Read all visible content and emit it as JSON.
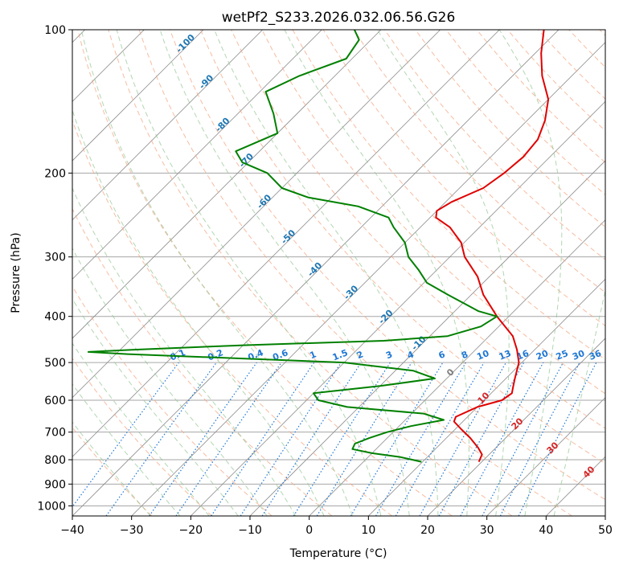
{
  "chart_data": {
    "type": "line",
    "title": "wetPf2_S233.2026.032.06.56.G26",
    "xlabel": "Temperature (°C)",
    "ylabel": "Pressure (hPa)",
    "xlim": [
      -40,
      50
    ],
    "ylim": [
      1050,
      100
    ],
    "y_scale": "log",
    "grid": true,
    "x_ticks": [
      "−40",
      "−30",
      "−20",
      "−10",
      "0",
      "10",
      "20",
      "30",
      "40",
      "50"
    ],
    "x_tick_values": [
      -40,
      -30,
      -20,
      -10,
      0,
      10,
      20,
      30,
      40,
      50
    ],
    "y_ticks": [
      "100",
      "200",
      "300",
      "400",
      "500",
      "600",
      "700",
      "800",
      "900",
      "1000"
    ],
    "y_tick_values": [
      100,
      200,
      300,
      400,
      500,
      600,
      700,
      800,
      900,
      1000
    ],
    "series": [
      {
        "color": "#e00000",
        "role": "temperature",
        "p": [
          808,
          780,
          755,
          720,
          690,
          665,
          650,
          620,
          600,
          580,
          560,
          540,
          500,
          470,
          440,
          400,
          360,
          330,
          300,
          280,
          260,
          248,
          240,
          230,
          215,
          200,
          185,
          170,
          155,
          140,
          125,
          112,
          100
        ],
        "t": [
          19.5,
          18.8,
          17.0,
          14.0,
          11.0,
          8.5,
          8.0,
          10.0,
          13.0,
          13.5,
          12.5,
          11.5,
          9.5,
          7.0,
          4.0,
          -2.0,
          -8.0,
          -12.0,
          -17.5,
          -20.5,
          -25.0,
          -29.0,
          -30.0,
          -29.0,
          -26.0,
          -25.0,
          -24.5,
          -25.0,
          -27.0,
          -30.0,
          -35.0,
          -39.0,
          -42.5
        ]
      },
      {
        "color": "#008000",
        "role": "dewpoint",
        "p": [
          808,
          790,
          775,
          760,
          740,
          720,
          700,
          680,
          660,
          640,
          620,
          600,
          580,
          560,
          540,
          520,
          500,
          480,
          475,
          470,
          460,
          450,
          440,
          420,
          400,
          390,
          360,
          340,
          320,
          300,
          280,
          260,
          248,
          235,
          225,
          215,
          200,
          190,
          180,
          165,
          150,
          135,
          125,
          115,
          105,
          100
        ],
        "t": [
          9.8,
          5.5,
          0.0,
          -4.0,
          -4.5,
          -3.0,
          -1.0,
          2.0,
          6.5,
          2.0,
          -12.0,
          -18.0,
          -20.0,
          -10.0,
          -2.0,
          -7.0,
          -20.0,
          -58.0,
          -65.0,
          -58.0,
          -40.0,
          -17.0,
          -7.0,
          -3.0,
          -2.0,
          -6.0,
          -14.0,
          -19.5,
          -23.0,
          -27.0,
          -30.0,
          -34.5,
          -37.0,
          -44.0,
          -54.0,
          -60.0,
          -65.0,
          -71.0,
          -74.0,
          -70.0,
          -74.0,
          -79.0,
          -76.0,
          -71.0,
          -72.0,
          -74.5
        ]
      }
    ],
    "dry_adiabat_labels": [
      "-100",
      "-90",
      "-80",
      "-70",
      "-60",
      "-50",
      "-40",
      "-30",
      "-20",
      "-10",
      "0",
      "10",
      "20",
      "30",
      "40"
    ],
    "moist_adiabat_labels": [
      "0",
      "10",
      "20",
      "30",
      "40"
    ],
    "mixing_ratio_labels": [
      "0.1",
      "0.2",
      "0.4",
      "0.6",
      "1",
      "1.5",
      "2",
      "3",
      "4",
      "6",
      "8",
      "10",
      "13",
      "16",
      "20",
      "25",
      "30",
      "36"
    ],
    "colors": {
      "temperature": "#e00000",
      "dewpoint": "#008000",
      "isotherm": "#8c8c8c",
      "isobar": "#a6a6a6",
      "dry_adiabat": "#f4a582",
      "moist_adiabat": "#92c592",
      "mixing_ratio": "#1f77d4",
      "label_blue": "#1f77b4",
      "label_red": "#d62728",
      "label_grey": "#808080"
    }
  }
}
